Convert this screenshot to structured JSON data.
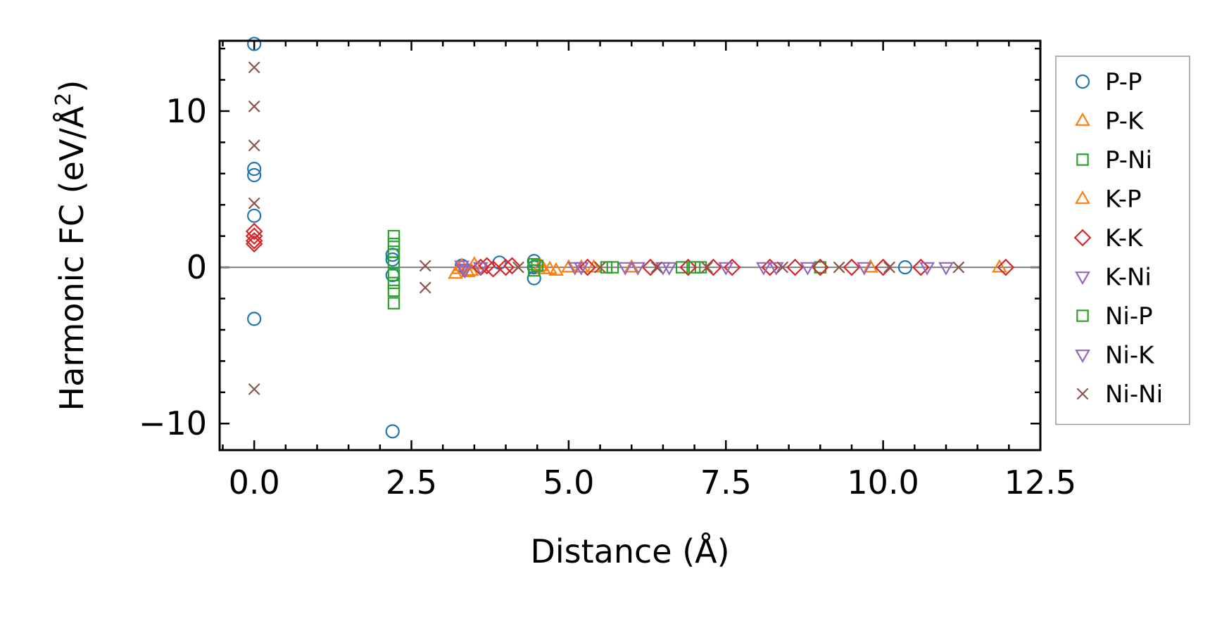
{
  "chart_data": {
    "type": "scatter",
    "title": "",
    "xlabel": "Distance (Å)",
    "ylabel": "Harmonic FC (eV/Å²)",
    "ylabel_base": "Harmonic FC (eV/Å",
    "ylabel_sup": "2",
    "ylabel_close": ")",
    "xlim": [
      -0.55,
      12.5
    ],
    "ylim": [
      -11.7,
      14.5
    ],
    "xticks": [
      0.0,
      2.5,
      5.0,
      7.5,
      10.0,
      12.5
    ],
    "xtick_labels": [
      "0.0",
      "2.5",
      "5.0",
      "7.5",
      "10.0",
      "12.5"
    ],
    "yticks": [
      -10,
      0,
      10
    ],
    "ytick_labels": [
      "−10",
      "0",
      "10"
    ],
    "zero_line": true,
    "grid": false,
    "legend_position": "outside-right",
    "series": [
      {
        "name": "P-P",
        "marker": "circle",
        "color": "#1f77b4",
        "x": [
          0,
          0,
          0,
          0,
          0,
          2.2,
          2.2,
          2.2,
          2.2,
          3.3,
          3.9,
          4.45,
          4.45,
          4.45,
          10.35
        ],
        "y": [
          14.3,
          6.3,
          5.9,
          3.3,
          -3.3,
          0.8,
          0.5,
          -0.5,
          -10.5,
          0.1,
          0.3,
          0.4,
          0,
          -0.7,
          0
        ]
      },
      {
        "name": "P-K",
        "marker": "triangle-up",
        "color": "#ff7f0e",
        "x": [
          3.2,
          3.3,
          3.4,
          3.5,
          4.6,
          4.8,
          5.0,
          5.4,
          11.85
        ],
        "y": [
          -0.4,
          0.1,
          -0.3,
          0.2,
          -0.1,
          -0.2,
          0,
          0,
          0
        ]
      },
      {
        "name": "P-Ni",
        "marker": "square",
        "color": "#2ca02c",
        "x": [
          2.22,
          2.22,
          2.22,
          2.22,
          2.22,
          2.22,
          4.45,
          5.6,
          6.8,
          7.1,
          9.0
        ],
        "y": [
          2.0,
          1.5,
          1.0,
          -1.0,
          -1.5,
          -2.3,
          0.2,
          0,
          0,
          0,
          0
        ]
      },
      {
        "name": "K-P",
        "marker": "triangle-up",
        "color": "#ff7f0e",
        "x": [
          3.25,
          3.45,
          4.55,
          4.7,
          5.2,
          6.0,
          9.8
        ],
        "y": [
          -0.1,
          -0.2,
          0.1,
          -0.1,
          0,
          0,
          0
        ]
      },
      {
        "name": "K-K",
        "marker": "diamond",
        "color": "#d62728",
        "x": [
          0,
          0,
          0,
          0,
          3.6,
          3.7,
          3.8,
          4.0,
          4.1,
          5.3,
          6.3,
          6.9,
          7.3,
          7.6,
          8.2,
          8.6,
          9.0,
          9.5,
          10.0,
          10.6,
          11.95
        ],
        "y": [
          2.3,
          2.0,
          1.7,
          1.5,
          0,
          0.1,
          -0.1,
          0,
          0.1,
          0,
          0,
          0,
          0,
          0,
          0,
          0,
          0,
          0,
          0,
          0,
          0
        ]
      },
      {
        "name": "K-Ni",
        "marker": "triangle-down",
        "color": "#9467bd",
        "x": [
          3.3,
          3.35,
          3.6,
          5.1,
          5.9,
          6.6,
          7.5,
          8.1,
          8.8,
          10.7
        ],
        "y": [
          0.1,
          -0.2,
          0,
          0,
          0,
          0,
          0,
          0,
          0,
          0
        ]
      },
      {
        "name": "Ni-P",
        "marker": "square",
        "color": "#2ca02c",
        "x": [
          2.22,
          2.22,
          4.45,
          4.5,
          5.7,
          7.0
        ],
        "y": [
          0.3,
          -0.5,
          -0.2,
          0.1,
          0,
          0
        ]
      },
      {
        "name": "Ni-K",
        "marker": "triangle-down",
        "color": "#9467bd",
        "x": [
          3.32,
          5.2,
          6.1,
          6.5,
          8.3,
          9.7,
          11.0
        ],
        "y": [
          -0.1,
          0,
          0,
          0,
          0,
          0,
          0
        ]
      },
      {
        "name": "Ni-Ni",
        "marker": "x",
        "color": "#8c564b",
        "x": [
          0,
          0,
          0,
          0,
          0,
          2.72,
          2.72,
          4.2,
          5.5,
          6.4,
          7.2,
          8.4,
          9.3,
          10.1,
          11.2
        ],
        "y": [
          12.8,
          10.3,
          7.8,
          4.1,
          -7.8,
          0.1,
          -1.3,
          0,
          0,
          0,
          0,
          0,
          0,
          0,
          0
        ]
      }
    ]
  }
}
